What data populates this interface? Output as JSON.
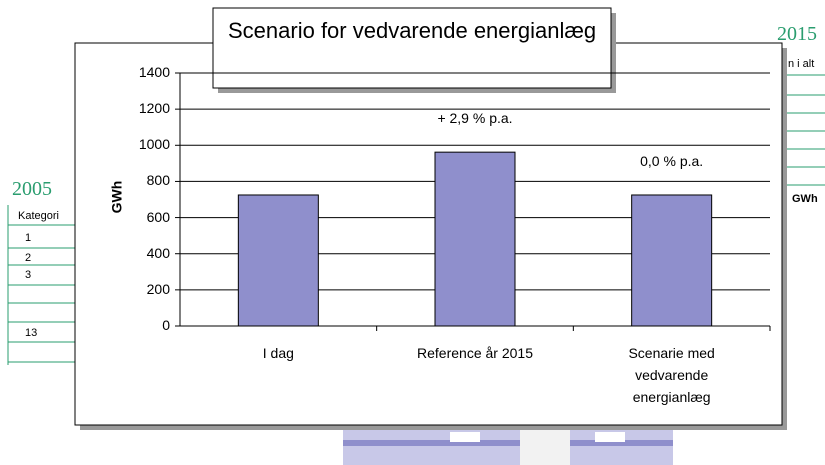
{
  "chart_data": {
    "type": "bar",
    "title": "Scenario for vedvarende energianlæg",
    "y_label": "GWh",
    "categories": [
      "I dag",
      "Reference år 2015",
      "Scenarie med vedvarende energianlæg"
    ],
    "values": [
      725,
      962,
      725
    ],
    "color": "#8f8fcc",
    "annotations": [
      "+ 2,9 % p.a.",
      "0,0 % p.a."
    ],
    "ylim": [
      0,
      1400
    ],
    "yticks": [
      0,
      200,
      400,
      600,
      800,
      1000,
      1200,
      1400
    ],
    "grid": true
  },
  "background": {
    "left_year": "2005",
    "left_header": "Kategori",
    "left_rows": [
      "1",
      "2",
      "3",
      "13"
    ],
    "right_year": "2015",
    "right_header": "n i alt",
    "right_unit": "GWh"
  }
}
